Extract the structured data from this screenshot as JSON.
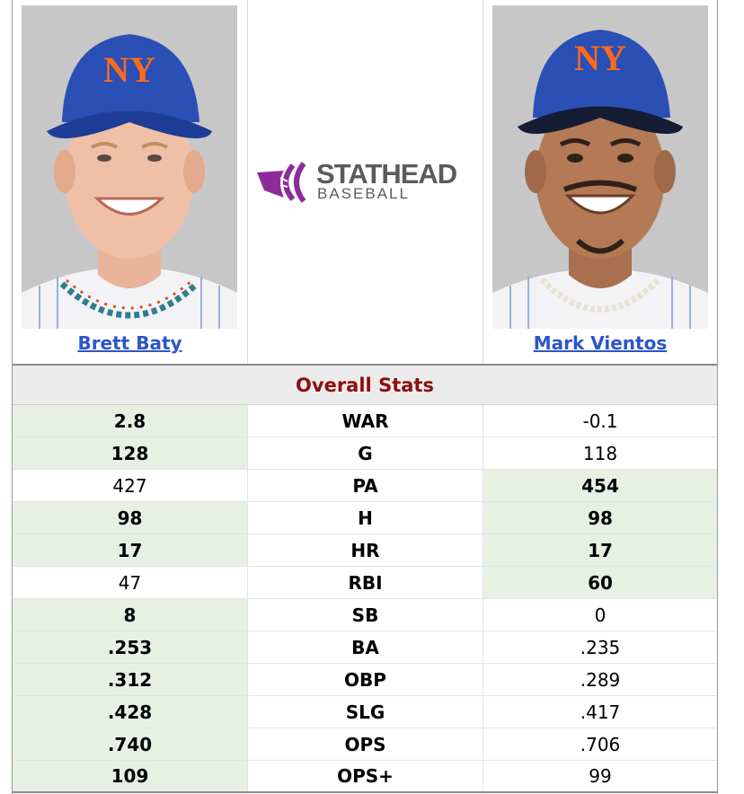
{
  "players": {
    "left": {
      "name": "Brett Baty",
      "photo": "brett-baty-headshot"
    },
    "right": {
      "name": "Mark Vientos",
      "photo": "mark-vientos-headshot"
    }
  },
  "logo": {
    "line1": "STATHEAD",
    "line2": "BASEBALL",
    "accent": "#8e2b9a"
  },
  "section_title": "Overall Stats",
  "colors": {
    "win_bg": "#e6f1e2",
    "section_title": "#8b0f0f",
    "link": "#2d55c8"
  },
  "stats": [
    {
      "label": "WAR",
      "left": "2.8",
      "right": "-0.1",
      "winner": "left"
    },
    {
      "label": "G",
      "left": "128",
      "right": "118",
      "winner": "left"
    },
    {
      "label": "PA",
      "left": "427",
      "right": "454",
      "winner": "right"
    },
    {
      "label": "H",
      "left": "98",
      "right": "98",
      "winner": "both"
    },
    {
      "label": "HR",
      "left": "17",
      "right": "17",
      "winner": "both"
    },
    {
      "label": "RBI",
      "left": "47",
      "right": "60",
      "winner": "right"
    },
    {
      "label": "SB",
      "left": "8",
      "right": "0",
      "winner": "left"
    },
    {
      "label": "BA",
      "left": ".253",
      "right": ".235",
      "winner": "left"
    },
    {
      "label": "OBP",
      "left": ".312",
      "right": ".289",
      "winner": "left"
    },
    {
      "label": "SLG",
      "left": ".428",
      "right": ".417",
      "winner": "left"
    },
    {
      "label": "OPS",
      "left": ".740",
      "right": ".706",
      "winner": "left"
    },
    {
      "label": "OPS+",
      "left": "109",
      "right": "99",
      "winner": "left"
    }
  ]
}
